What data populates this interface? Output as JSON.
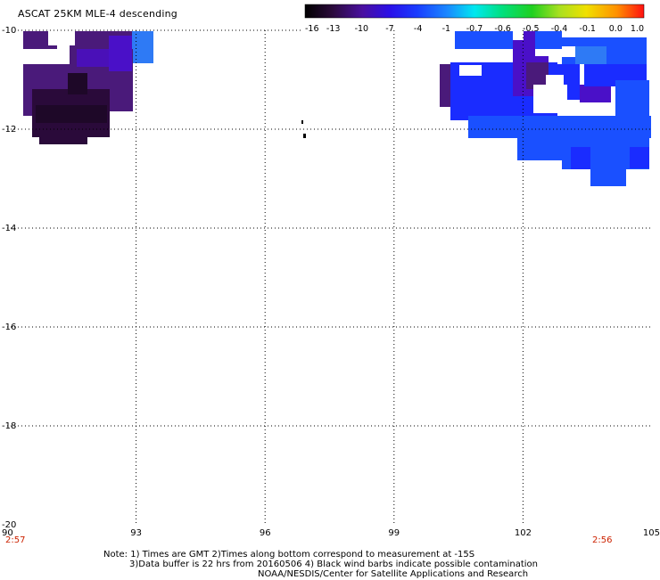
{
  "title": "ASCAT 25KM MLE-4 descending",
  "colorbar": {
    "ticks": [
      "-16",
      "-13",
      "-10",
      "-7",
      "-4",
      "-1",
      "-0.7",
      "-0.6",
      "-0.5",
      "-0.4",
      "-0.1",
      "0.0",
      "1.0"
    ]
  },
  "axes": {
    "x_ticks": [
      "90",
      "93",
      "96",
      "99",
      "102",
      "105"
    ],
    "y_ticks": [
      "-10",
      "-12",
      "-14",
      "-16",
      "-18",
      "-20"
    ],
    "lon_range": [
      90,
      105
    ],
    "lat_range": [
      -20,
      -10
    ]
  },
  "times": {
    "left": "2:57",
    "right": "2:56"
  },
  "notes": {
    "line1": "Note: 1) Times are GMT 2)Times along bottom correspond to measurement at -15S",
    "line2": "3)Data buffer is 22 hrs from 20160506 4) Black wind barbs indicate possible contamination",
    "line3": "NOAA/NESDIS/Center for Satellite Applications and Research"
  },
  "colors": {
    "deep_violet": "#2a0a3a",
    "violet": "#4a1a7a",
    "indigo": "#4a10c8",
    "blue": "#1a2cff",
    "royal_blue": "#1a50ff",
    "sky_blue": "#2e7af5"
  }
}
